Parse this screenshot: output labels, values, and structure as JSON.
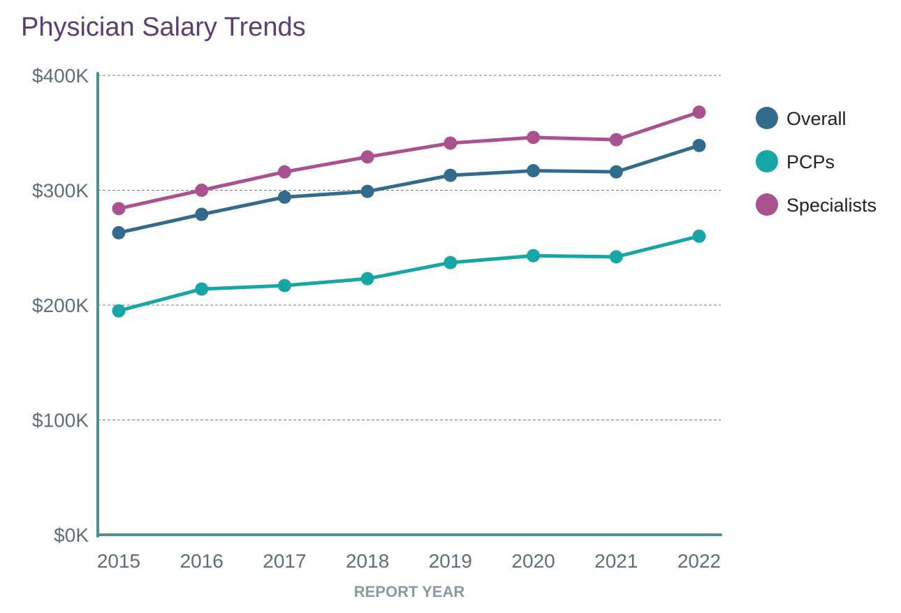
{
  "chart_data": {
    "type": "line",
    "title": "Physician Salary Trends",
    "xlabel": "REPORT YEAR",
    "ylabel": "",
    "categories": [
      "2015",
      "2016",
      "2017",
      "2018",
      "2019",
      "2020",
      "2021",
      "2022"
    ],
    "ylim": [
      0,
      400
    ],
    "yticks": [
      0,
      100,
      200,
      300,
      400
    ],
    "ytick_labels": [
      "$0K",
      "$100K",
      "$200K",
      "$300K",
      "$400K"
    ],
    "grid": true,
    "legend_position": "right",
    "unit": "thousand USD",
    "series": [
      {
        "name": "Overall",
        "color": "#336b8c",
        "values": [
          263,
          279,
          294,
          299,
          313,
          317,
          316,
          339
        ]
      },
      {
        "name": "PCPs",
        "color": "#17a6a6",
        "values": [
          195,
          214,
          217,
          223,
          237,
          243,
          242,
          260
        ]
      },
      {
        "name": "Specialists",
        "color": "#a9528f",
        "values": [
          284,
          300,
          316,
          329,
          341,
          346,
          344,
          368
        ]
      }
    ],
    "colors": {
      "axis": "#4b8f98",
      "tick_text": "#5f6f74",
      "xlabel_text": "#8a9aa0",
      "title": "#5a3f73"
    }
  }
}
